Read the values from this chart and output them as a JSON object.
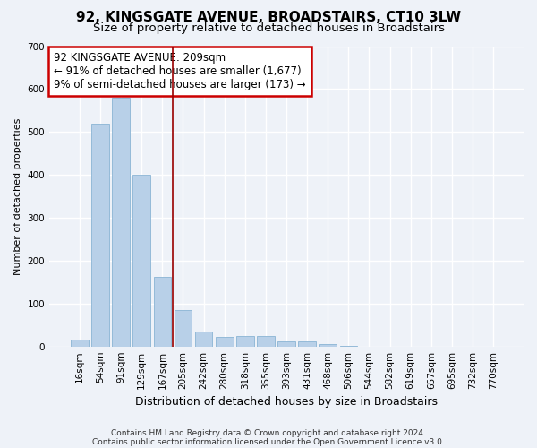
{
  "title": "92, KINGSGATE AVENUE, BROADSTAIRS, CT10 3LW",
  "subtitle": "Size of property relative to detached houses in Broadstairs",
  "xlabel": "Distribution of detached houses by size in Broadstairs",
  "ylabel": "Number of detached properties",
  "categories": [
    "16sqm",
    "54sqm",
    "91sqm",
    "129sqm",
    "167sqm",
    "205sqm",
    "242sqm",
    "280sqm",
    "318sqm",
    "355sqm",
    "393sqm",
    "431sqm",
    "468sqm",
    "506sqm",
    "544sqm",
    "582sqm",
    "619sqm",
    "657sqm",
    "695sqm",
    "732sqm",
    "770sqm"
  ],
  "values": [
    15,
    520,
    580,
    400,
    162,
    85,
    35,
    22,
    25,
    25,
    12,
    12,
    5,
    2,
    0,
    0,
    0,
    0,
    0,
    0,
    0
  ],
  "bar_color": "#b8d0e8",
  "bar_edge_color": "#8ab4d4",
  "highlight_vline_x": 4.5,
  "highlight_line_color": "#990000",
  "annotation_text": "92 KINGSGATE AVENUE: 209sqm\n← 91% of detached houses are smaller (1,677)\n9% of semi-detached houses are larger (173) →",
  "annotation_box_facecolor": "#ffffff",
  "annotation_box_edgecolor": "#cc0000",
  "ylim": [
    0,
    700
  ],
  "yticks": [
    0,
    100,
    200,
    300,
    400,
    500,
    600,
    700
  ],
  "footer_line1": "Contains HM Land Registry data © Crown copyright and database right 2024.",
  "footer_line2": "Contains public sector information licensed under the Open Government Licence v3.0.",
  "bg_color": "#eef2f8",
  "plot_bg_color": "#eef2f8",
  "grid_color": "#ffffff",
  "title_fontsize": 11,
  "subtitle_fontsize": 9.5,
  "xlabel_fontsize": 9,
  "ylabel_fontsize": 8,
  "tick_fontsize": 7.5,
  "footer_fontsize": 6.5,
  "annotation_fontsize": 8.5
}
